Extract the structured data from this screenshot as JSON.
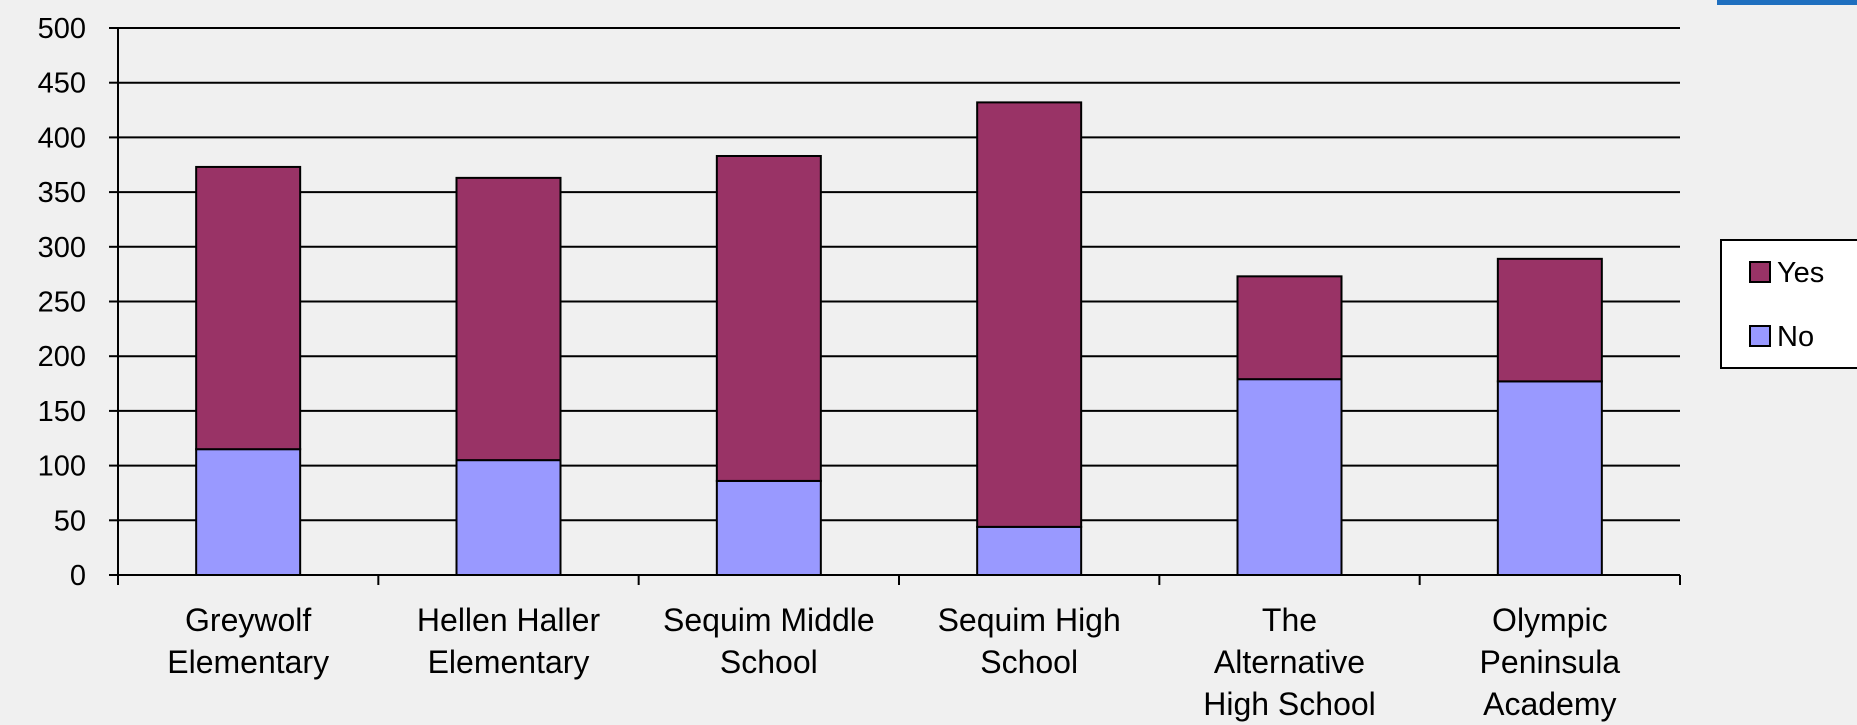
{
  "chart_data": {
    "type": "bar",
    "stacked": true,
    "categories": [
      [
        "Greywolf",
        "Elementary"
      ],
      [
        "Hellen Haller",
        "Elementary"
      ],
      [
        "Sequim Middle",
        "School"
      ],
      [
        "Sequim High",
        "School"
      ],
      [
        "The",
        "Alternative",
        "High School"
      ],
      [
        "Olympic",
        "Peninsula",
        "Academy"
      ]
    ],
    "series": [
      {
        "name": "No",
        "color": "#9999ff",
        "values": [
          115,
          105,
          86,
          44,
          179,
          177
        ]
      },
      {
        "name": "Yes",
        "color": "#993366",
        "values": [
          258,
          258,
          297,
          388,
          94,
          112
        ]
      }
    ],
    "ylim": [
      0,
      500
    ],
    "yticks": [
      "0",
      "50",
      "100",
      "150",
      "200",
      "250",
      "300",
      "350",
      "400",
      "450",
      "500"
    ],
    "grid": true,
    "legend_position": "right",
    "legend": [
      {
        "name": "Yes",
        "color": "#993366"
      },
      {
        "name": "No",
        "color": "#9999ff"
      }
    ]
  }
}
